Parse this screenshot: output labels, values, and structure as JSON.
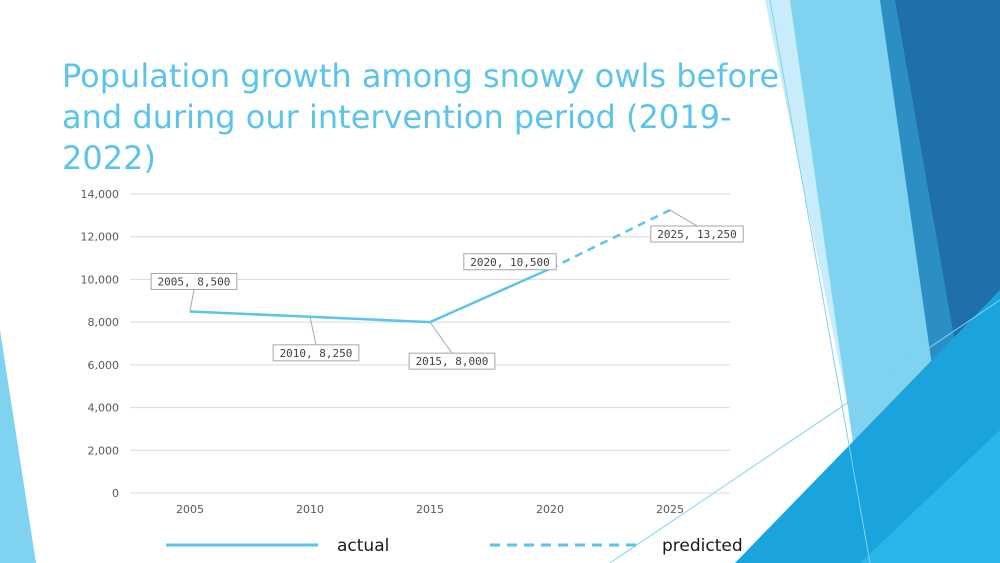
{
  "slide": {
    "title": "Population growth among snowy owls before and during our intervention period (2019-2022)"
  },
  "colors": {
    "series": "#5bc4ec",
    "title": "#5bc4ec",
    "grid": "#d9d9d9"
  },
  "chart_data": {
    "type": "line",
    "title": "",
    "xlabel": "",
    "ylabel": "",
    "categories": [
      "2005",
      "2010",
      "2015",
      "2020",
      "2025"
    ],
    "ylim": [
      0,
      14000
    ],
    "yticks": [
      "0",
      "2,000",
      "4,000",
      "6,000",
      "8,000",
      "10,000",
      "12,000",
      "14,000"
    ],
    "yticks_values": [
      0,
      2000,
      4000,
      6000,
      8000,
      10000,
      12000,
      14000
    ],
    "grid": true,
    "legend_position": "bottom",
    "series": [
      {
        "name": "actual",
        "style": "solid",
        "points": [
          {
            "x": "2005",
            "y": 8500,
            "label": "2005, 8,500"
          },
          {
            "x": "2010",
            "y": 8250,
            "label": "2010, 8,250"
          },
          {
            "x": "2015",
            "y": 8000,
            "label": "2015, 8,000"
          },
          {
            "x": "2020",
            "y": 10500,
            "label": "2020, 10,500"
          }
        ]
      },
      {
        "name": "predicted",
        "style": "dashed",
        "points": [
          {
            "x": "2020",
            "y": 10500
          },
          {
            "x": "2025",
            "y": 13250,
            "label": "2025, 13,250"
          }
        ]
      }
    ]
  }
}
